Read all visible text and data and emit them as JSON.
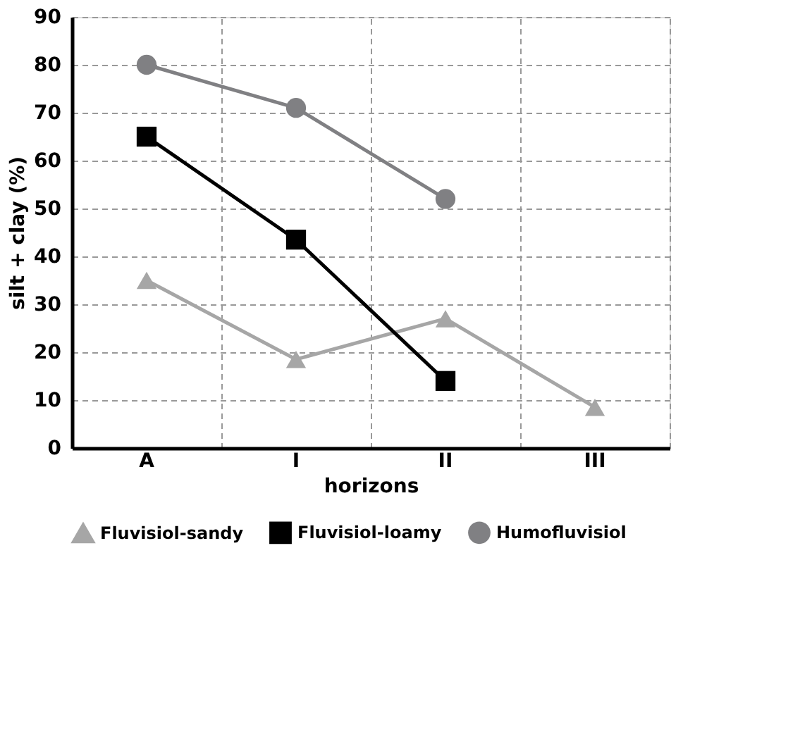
{
  "chart_data": {
    "type": "line",
    "xlabel": "horizons",
    "ylabel": "silt + clay (%)",
    "categories": [
      "A",
      "I",
      "II",
      "III"
    ],
    "series": [
      {
        "name": "Fluvisiol-sandy",
        "color": "#a6a6a6",
        "marker": "triangle",
        "values": [
          35,
          18.5,
          27,
          8.5
        ]
      },
      {
        "name": "Fluvisiol-loamy",
        "color": "#000000",
        "marker": "square",
        "values": [
          65,
          43.5,
          14,
          null
        ]
      },
      {
        "name": "Humofluvisiol",
        "color": "#808083",
        "marker": "circle",
        "values": [
          80,
          71,
          52,
          null
        ]
      }
    ],
    "ylim": [
      0,
      90
    ],
    "yticks": [
      0,
      10,
      20,
      30,
      40,
      50,
      60,
      70,
      80,
      90
    ],
    "grid": true,
    "legend": "bottom",
    "line_style": "solid"
  }
}
